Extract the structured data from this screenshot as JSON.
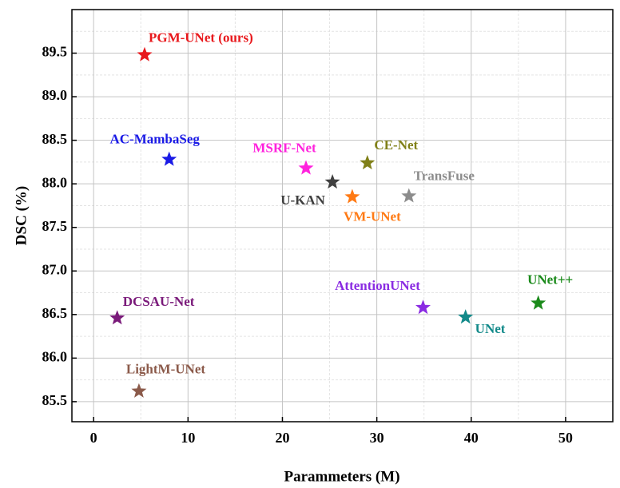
{
  "chart_data": {
    "type": "scatter",
    "xlabel": "Parammeters (M)",
    "ylabel": "DSC (%)",
    "xlim": [
      -2.3,
      55
    ],
    "ylim": [
      85.27,
      90.0
    ],
    "xticks": [
      0,
      10,
      20,
      30,
      40,
      50
    ],
    "yticks": [
      85.5,
      {
        "value": 86,
        "label": "86.0"
      },
      86.5,
      {
        "value": 87,
        "label": "87.0"
      },
      87.5,
      {
        "value": 88,
        "label": "88.0"
      },
      88.5,
      {
        "value": 89,
        "label": "89.0"
      },
      89.5
    ],
    "xminor": [
      5,
      15,
      25,
      35,
      45
    ],
    "yminor": [
      85.75,
      86.25,
      86.75,
      87.25,
      87.75,
      88.25,
      88.75,
      89.25,
      89.75
    ],
    "grid": true,
    "series": [
      {
        "name": "PGM-UNet (ours)",
        "color": "#e8181c",
        "x": [
          5.4
        ],
        "values": [
          89.48
        ]
      },
      {
        "name": "AC-MambaSeg",
        "color": "#1a1ae6",
        "x": [
          8.0
        ],
        "values": [
          88.28
        ]
      },
      {
        "name": "MSRF-Net",
        "color": "#ff22dd",
        "x": [
          22.5
        ],
        "values": [
          88.18
        ]
      },
      {
        "name": "U-KAN",
        "color": "#404040",
        "x": [
          25.3
        ],
        "values": [
          88.02
        ]
      },
      {
        "name": "CE-Net",
        "color": "#808018",
        "x": [
          29.0
        ],
        "values": [
          88.24
        ]
      },
      {
        "name": "VM-UNet",
        "color": "#ff7a14",
        "x": [
          27.4
        ],
        "values": [
          87.85
        ]
      },
      {
        "name": "TransFuse",
        "color": "#8c8c8c",
        "x": [
          33.4
        ],
        "values": [
          87.86
        ]
      },
      {
        "name": "DCSAU-Net",
        "color": "#7a1a7a",
        "x": [
          2.5
        ],
        "values": [
          86.46
        ]
      },
      {
        "name": "LightM-UNet",
        "color": "#8b5a4a",
        "x": [
          4.8
        ],
        "values": [
          85.62
        ]
      },
      {
        "name": "AttentionUNet",
        "color": "#8a2be2",
        "x": [
          34.9
        ],
        "values": [
          86.58
        ]
      },
      {
        "name": "UNet",
        "color": "#138a8a",
        "x": [
          39.4
        ],
        "values": [
          86.47
        ]
      },
      {
        "name": "UNet++",
        "color": "#1a8a1a",
        "x": [
          47.1
        ],
        "values": [
          86.63
        ]
      }
    ]
  }
}
